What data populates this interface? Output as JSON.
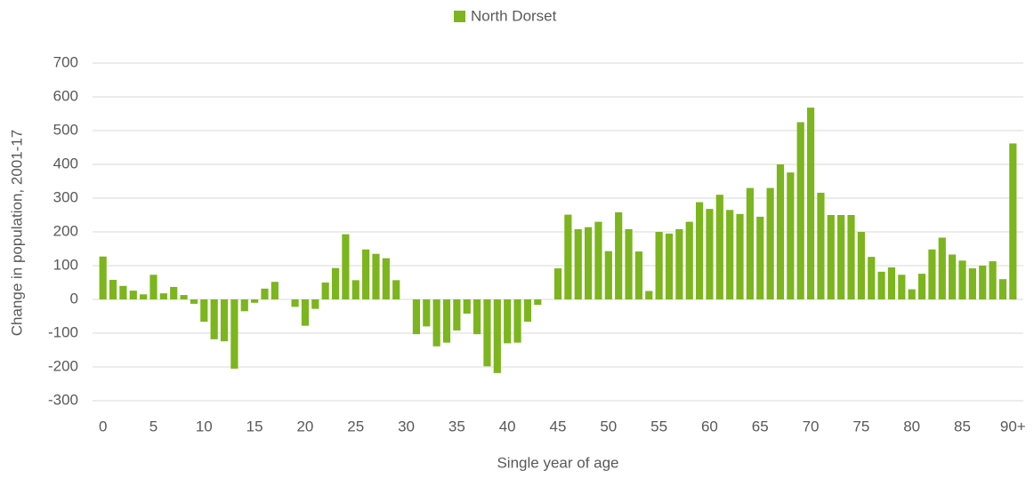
{
  "chart_data": {
    "type": "bar",
    "legend": "North Dorset",
    "xlabel": "Single year of age",
    "ylabel": "Change in population, 2001-17",
    "color": "#7cb51e",
    "grid": true,
    "legend_position": "top",
    "categories": [
      "0",
      null,
      null,
      null,
      null,
      "5",
      null,
      null,
      null,
      null,
      "10",
      null,
      null,
      null,
      null,
      "15",
      null,
      null,
      null,
      null,
      "20",
      null,
      null,
      null,
      null,
      "25",
      null,
      null,
      null,
      null,
      "30",
      null,
      null,
      null,
      null,
      "35",
      null,
      null,
      null,
      null,
      "40",
      null,
      null,
      null,
      null,
      "45",
      null,
      null,
      null,
      null,
      "50",
      null,
      null,
      null,
      null,
      "55",
      null,
      null,
      null,
      null,
      "60",
      null,
      null,
      null,
      null,
      "65",
      null,
      null,
      null,
      null,
      "70",
      null,
      null,
      null,
      null,
      "75",
      null,
      null,
      null,
      null,
      "80",
      null,
      null,
      null,
      null,
      "85",
      null,
      null,
      null,
      null,
      "90+"
    ],
    "values": [
      127,
      58,
      40,
      26,
      15,
      73,
      18,
      37,
      13,
      -13,
      -66,
      -118,
      -124,
      -205,
      -35,
      -10,
      32,
      52,
      0,
      -22,
      -78,
      -28,
      50,
      93,
      193,
      57,
      148,
      135,
      122,
      57,
      0,
      -103,
      -80,
      -139,
      -128,
      -92,
      -42,
      -103,
      -198,
      -218,
      -130,
      -128,
      -66,
      -16,
      0,
      92,
      251,
      208,
      214,
      230,
      143,
      258,
      208,
      142,
      25,
      200,
      195,
      208,
      230,
      288,
      268,
      310,
      265,
      253,
      330,
      245,
      330,
      400,
      376,
      525,
      568,
      316,
      250,
      250,
      250,
      200,
      126,
      82,
      95,
      73,
      30,
      76,
      148,
      183,
      133,
      115,
      92,
      100,
      113,
      60,
      462
    ],
    "ylim": [
      -300,
      700
    ],
    "yticks": [
      -300,
      -200,
      -100,
      0,
      100,
      200,
      300,
      400,
      500,
      600,
      700
    ]
  }
}
